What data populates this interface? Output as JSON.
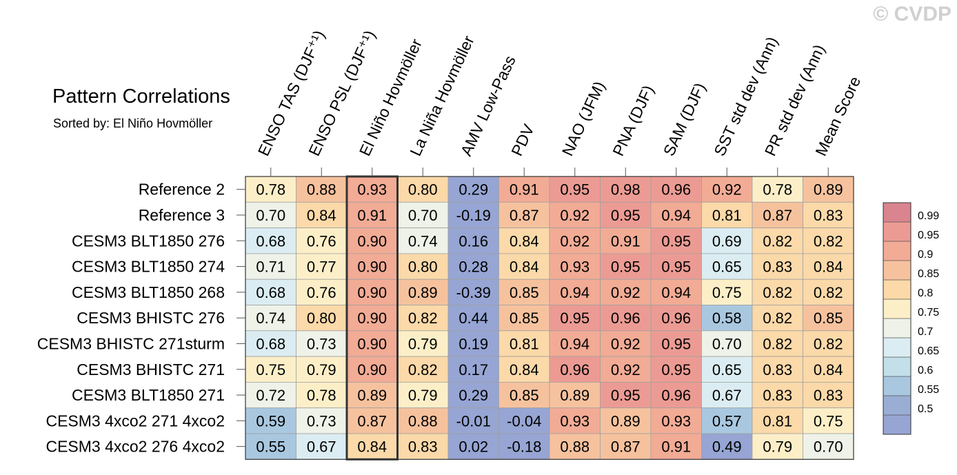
{
  "watermark": "© CVDP",
  "title": "Pattern Correlations",
  "subtitle": "Sorted by: El Niño Hovmöller",
  "chart_data": {
    "type": "heatmap",
    "title": "Pattern Correlations",
    "subtitle": "Sorted by: El Niño Hovmöller",
    "columns": [
      "ENSO TAS (DJF⁺¹)",
      "ENSO PSL (DJF⁺¹)",
      "El Niño Hovmöller",
      "La Niña Hovmöller",
      "AMV Low-Pass",
      "PDV",
      "NAO (JFM)",
      "PNA (DJF)",
      "SAM (DJF)",
      "SST std dev (Ann)",
      "PR std dev (Ann)",
      "Mean Score"
    ],
    "highlighted_column": "El Niño Hovmöller",
    "rows": [
      "Reference 2",
      "Reference 3",
      "CESM3 BLT1850 276",
      "CESM3 BLT1850 274",
      "CESM3 BLT1850 268",
      "CESM3 BHISTC 276",
      "CESM3 BHISTC 271sturm",
      "CESM3 BHISTC 271",
      "CESM3 BLT1850 271",
      "CESM3 4xco2 271 4xco2",
      "CESM3 4xco2 276 4xco2"
    ],
    "values": [
      [
        "0.78",
        "0.88",
        "0.93",
        "0.80",
        "0.29",
        "0.91",
        "0.95",
        "0.98",
        "0.96",
        "0.92",
        "0.78",
        "0.89"
      ],
      [
        "0.70",
        "0.84",
        "0.91",
        "0.70",
        "-0.19",
        "0.87",
        "0.92",
        "0.95",
        "0.94",
        "0.81",
        "0.87",
        "0.83"
      ],
      [
        "0.68",
        "0.76",
        "0.90",
        "0.74",
        "0.16",
        "0.84",
        "0.92",
        "0.91",
        "0.95",
        "0.69",
        "0.82",
        "0.82"
      ],
      [
        "0.71",
        "0.77",
        "0.90",
        "0.80",
        "0.28",
        "0.84",
        "0.93",
        "0.95",
        "0.95",
        "0.65",
        "0.83",
        "0.84"
      ],
      [
        "0.68",
        "0.76",
        "0.90",
        "0.89",
        "-0.39",
        "0.85",
        "0.94",
        "0.92",
        "0.94",
        "0.75",
        "0.82",
        "0.82"
      ],
      [
        "0.74",
        "0.80",
        "0.90",
        "0.82",
        "0.44",
        "0.85",
        "0.95",
        "0.96",
        "0.96",
        "0.58",
        "0.82",
        "0.85"
      ],
      [
        "0.68",
        "0.73",
        "0.90",
        "0.79",
        "0.19",
        "0.81",
        "0.94",
        "0.92",
        "0.95",
        "0.70",
        "0.82",
        "0.82"
      ],
      [
        "0.75",
        "0.79",
        "0.90",
        "0.82",
        "0.17",
        "0.84",
        "0.96",
        "0.92",
        "0.95",
        "0.65",
        "0.83",
        "0.84"
      ],
      [
        "0.72",
        "0.78",
        "0.89",
        "0.79",
        "0.29",
        "0.85",
        "0.89",
        "0.95",
        "0.96",
        "0.67",
        "0.83",
        "0.83"
      ],
      [
        "0.59",
        "0.73",
        "0.87",
        "0.88",
        "-0.01",
        "-0.04",
        "0.93",
        "0.89",
        "0.93",
        "0.57",
        "0.81",
        "0.75"
      ],
      [
        "0.55",
        "0.67",
        "0.84",
        "0.83",
        "0.02",
        "-0.18",
        "0.88",
        "0.87",
        "0.91",
        "0.49",
        "0.79",
        "0.70"
      ]
    ],
    "colorbar": {
      "labels": [
        "0.99",
        "0.95",
        "0.9",
        "0.85",
        "0.8",
        "0.75",
        "0.7",
        "0.65",
        "0.6",
        "0.55",
        "0.5"
      ],
      "thresholds": [
        0.99,
        0.95,
        0.9,
        0.85,
        0.8,
        0.75,
        0.7,
        0.65,
        0.6,
        0.55,
        0.5
      ],
      "colors": [
        "#d9848f",
        "#eb9b93",
        "#f2ab95",
        "#f6c29e",
        "#fbd9a9",
        "#fcefc8",
        "#eef2e8",
        "#dbedf2",
        "#c3dfea",
        "#a9c8e0",
        "#9aaed3",
        "#96a5d3"
      ]
    },
    "grid": false
  }
}
